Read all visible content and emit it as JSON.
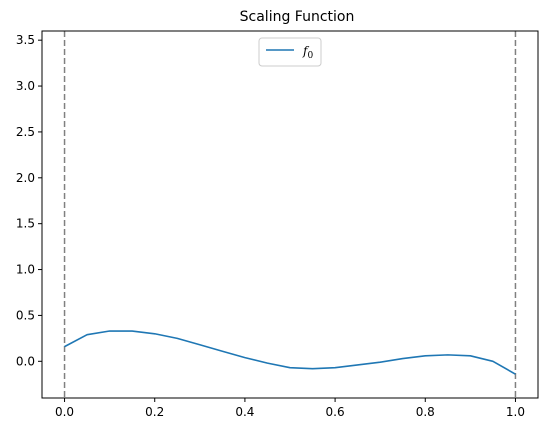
{
  "chart_data": {
    "type": "line",
    "title": "Scaling Function",
    "xlabel": "",
    "ylabel": "",
    "xlim": [
      -0.05,
      1.05
    ],
    "ylim": [
      -0.4,
      3.6
    ],
    "x_ticks": [
      "0.0",
      "0.2",
      "0.4",
      "0.6",
      "0.8",
      "1.0"
    ],
    "y_ticks": [
      "0.0",
      "0.5",
      "1.0",
      "1.5",
      "2.0",
      "2.5",
      "3.0",
      "3.5"
    ],
    "grid": false,
    "legend_position": "top-center",
    "vertical_lines": [
      {
        "x": 0.0,
        "style": "dashed",
        "color": "#808080"
      },
      {
        "x": 1.0,
        "style": "dashed",
        "color": "#808080"
      }
    ],
    "series": [
      {
        "name": "f",
        "name_subscript": "0",
        "color": "#1f77b4",
        "x": [
          0.0,
          0.05,
          0.1,
          0.15,
          0.2,
          0.25,
          0.3,
          0.35,
          0.4,
          0.45,
          0.5,
          0.55,
          0.6,
          0.65,
          0.7,
          0.75,
          0.8,
          0.85,
          0.9,
          0.95,
          1.0
        ],
        "y": [
          0.16,
          0.29,
          0.33,
          0.33,
          0.3,
          0.25,
          0.18,
          0.11,
          0.04,
          -0.02,
          -0.07,
          -0.08,
          -0.07,
          -0.04,
          -0.01,
          0.03,
          0.06,
          0.07,
          0.06,
          0.0,
          -0.14
        ]
      }
    ]
  }
}
